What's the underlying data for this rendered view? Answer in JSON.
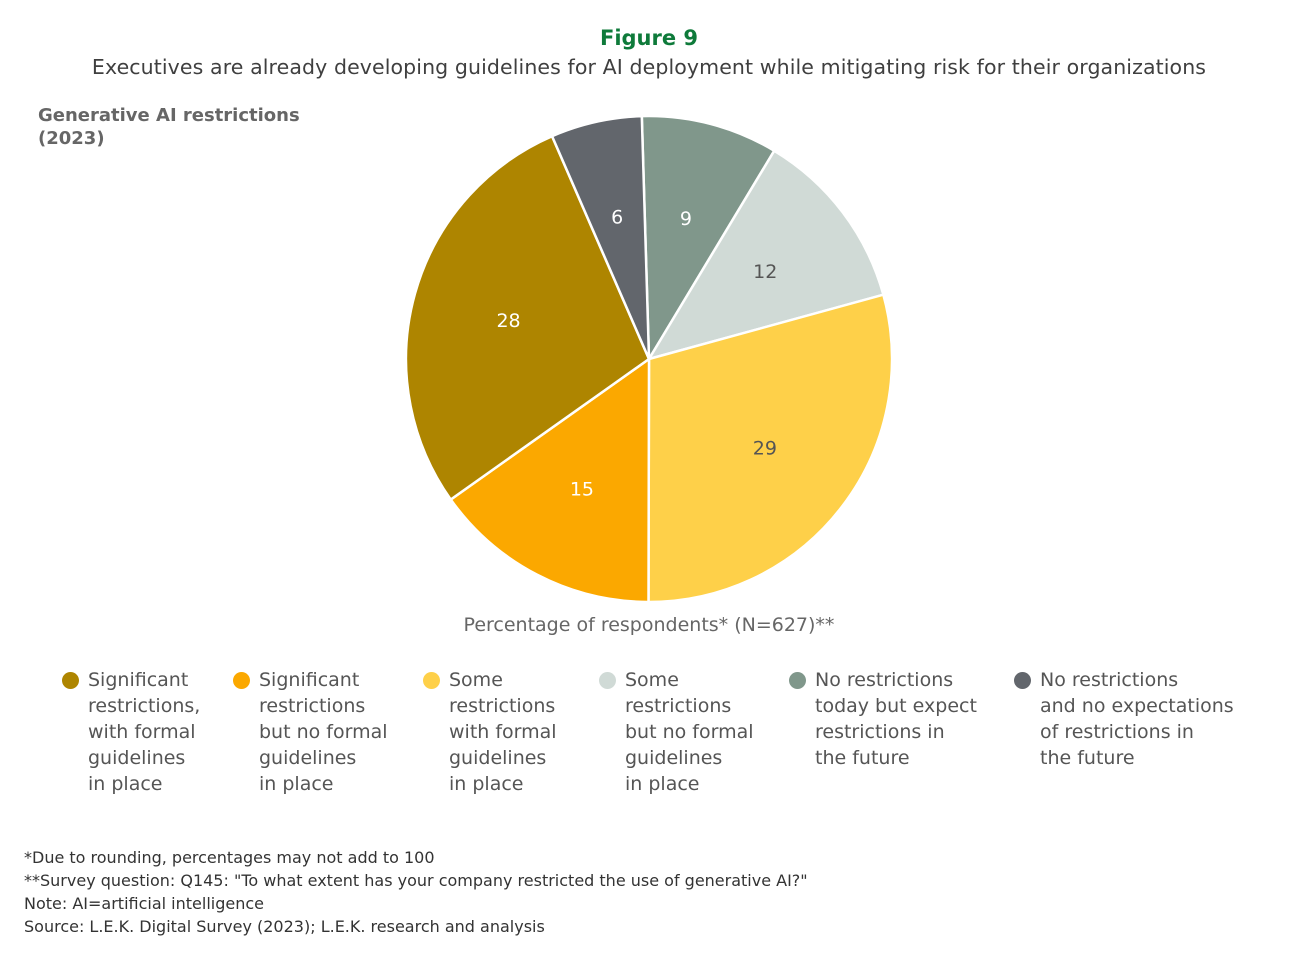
{
  "figure_label": "Figure 9",
  "title": "Executives are already developing guidelines for AI deployment while mitigating risk for their organizations",
  "subheading": "Generative AI restrictions\n(2023)",
  "chart_data": {
    "type": "pie",
    "title": "Generative AI restrictions (2023)",
    "xlabel": "Percentage of respondents* (N=627)**",
    "slices": [
      {
        "label": "No restrictions today but expect restrictions in the future",
        "value": 9,
        "color": "#80978B",
        "text_color": "#ffffff"
      },
      {
        "label": "Some restrictions but no formal guidelines in place",
        "value": 12,
        "color": "#D0DAD6",
        "text_color": "#555555"
      },
      {
        "label": "Some restrictions with formal guidelines in place",
        "value": 29,
        "color": "#FED049",
        "text_color": "#555555"
      },
      {
        "label": "Significant restrictions but no formal guidelines in place",
        "value": 15,
        "color": "#FBA800",
        "text_color": "#ffffff"
      },
      {
        "label": "Significant restrictions, with formal guidelines in place",
        "value": 28,
        "color": "#AE8500",
        "text_color": "#ffffff"
      },
      {
        "label": "No restrictions and no expectations of restrictions in the future",
        "value": 6,
        "color": "#62666C",
        "text_color": "#ffffff"
      }
    ],
    "legend_placement": "bottom"
  },
  "legend": [
    {
      "text": "Significant\nrestrictions,\nwith formal\nguidelines\nin place",
      "color": "#AE8500"
    },
    {
      "text": "Significant\nrestrictions\nbut no formal\nguidelines\nin place",
      "color": "#FBA800"
    },
    {
      "text": "Some\nrestrictions\nwith formal\nguidelines\nin place",
      "color": "#FED049"
    },
    {
      "text": "Some\nrestrictions\nbut no formal\nguidelines\nin place",
      "color": "#D0DAD6"
    },
    {
      "text": "No restrictions\ntoday but expect\nrestrictions in\nthe future",
      "color": "#80978B"
    },
    {
      "text": "No restrictions\nand no expectations\nof restrictions in\nthe future",
      "color": "#62666C"
    }
  ],
  "notes": [
    "*Due to rounding, percentages may not add to 100",
    "**Survey question: Q145: \"To what extent has your company restricted the use of generative AI?\"",
    "Note: AI=artificial intelligence",
    "Source: L.E.K. Digital Survey (2023); L.E.K. research and analysis"
  ]
}
